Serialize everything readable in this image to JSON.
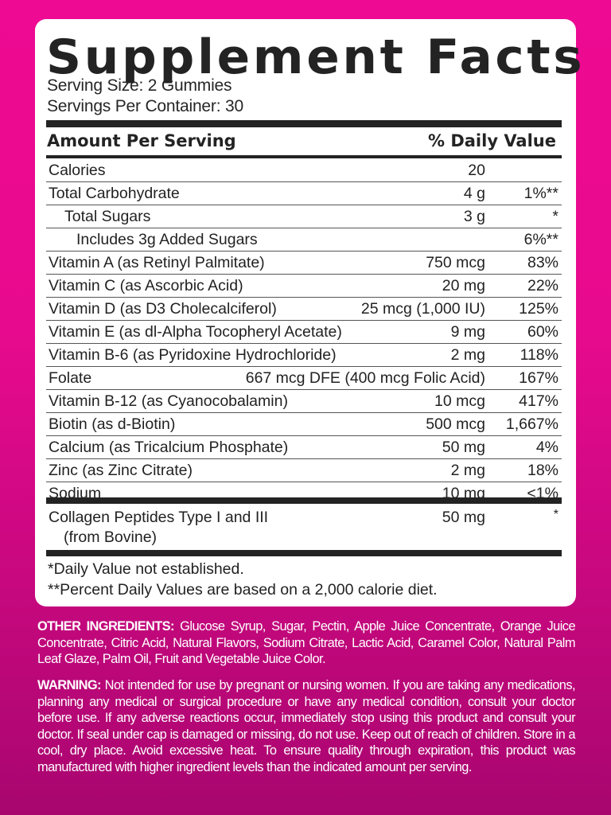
{
  "label": {
    "title": "Supplement Facts",
    "serving_size": "Serving Size: 2 Gummies",
    "servings_per_container": "Servings Per Container: 30",
    "header_amount": "Amount Per Serving",
    "header_dv": "% Daily Value",
    "rows": [
      {
        "name": "Calories",
        "amount": "20",
        "dv": "",
        "indent": 0
      },
      {
        "name": "Total Carbohydrate",
        "amount": "4 g",
        "dv": "1%**",
        "indent": 0
      },
      {
        "name": "Total Sugars",
        "amount": "3 g",
        "dv": "*",
        "indent": 1
      },
      {
        "name": "Includes 3g Added Sugars",
        "amount": "",
        "dv": "6%**",
        "indent": 2
      },
      {
        "name": "Vitamin A (as Retinyl Palmitate)",
        "amount": "750 mcg",
        "dv": "83%",
        "indent": 0
      },
      {
        "name": "Vitamin C (as Ascorbic Acid)",
        "amount": "20 mg",
        "dv": "22%",
        "indent": 0
      },
      {
        "name": "Vitamin D (as D3 Cholecalciferol)",
        "amount": "25 mcg (1,000 IU)",
        "dv": "125%",
        "indent": 0
      },
      {
        "name": "Vitamin E (as dl-Alpha Tocopheryl Acetate)",
        "amount": "9 mg",
        "dv": "60%",
        "indent": 0
      },
      {
        "name": "Vitamin B-6 (as Pyridoxine Hydrochloride)",
        "amount": "2 mg",
        "dv": "118%",
        "indent": 0
      },
      {
        "name": "Folate",
        "amount": "667 mcg DFE (400 mcg Folic Acid)",
        "dv": "167%",
        "indent": 0
      },
      {
        "name": "Vitamin B-12 (as Cyanocobalamin)",
        "amount": "10 mcg",
        "dv": "417%",
        "indent": 0
      },
      {
        "name": "Biotin (as d-Biotin)",
        "amount": "500 mcg",
        "dv": "1,667%",
        "indent": 0
      },
      {
        "name": "Calcium (as Tricalcium Phosphate)",
        "amount": "50 mg",
        "dv": "4%",
        "indent": 0
      },
      {
        "name": "Zinc (as Zinc Citrate)",
        "amount": "2 mg",
        "dv": "18%",
        "indent": 0
      },
      {
        "name": "Sodium",
        "amount": "10 mg",
        "dv": "<1%",
        "indent": 0
      }
    ],
    "collagen": {
      "name_line1": "Collagen Peptides Type I and III",
      "name_line2": "(from Bovine)",
      "amount": "50 mg",
      "dv": "*"
    },
    "footnote_1": "*Daily Value not established.",
    "footnote_2": "**Percent Daily Values are based on a 2,000 calorie diet."
  },
  "other_ingredients": {
    "heading": "OTHER INGREDIENTS:",
    "text": " Glucose Syrup, Sugar, Pectin, Apple Juice Concentrate, Orange Juice Concentrate, Citric Acid, Natural Flavors, Sodium Citrate, Lactic Acid, Caramel Color, Natural Palm Leaf Glaze, Palm Oil, Fruit and Vegetable Juice Color."
  },
  "warning": {
    "heading": "WARNING:",
    "text": " Not intended for use by pregnant or nursing women. If you are taking any medications, planning any medical or surgical procedure or have any medical condition, consult your doctor before use. If any adverse reactions occur, immediately stop using this product and consult your doctor. If seal under cap is damaged or missing, do not use. Keep out of reach of children. Store in a cool, dry place. Avoid excessive heat. To ensure quality through expiration, this product was manufactured with higher ingredient levels than the indicated amount per serving."
  },
  "colors": {
    "background_top": "#ee0a92",
    "background_bottom": "#a8066f",
    "card": "#ffffff",
    "text_dark": "#222222",
    "text_light": "#ffffff"
  }
}
